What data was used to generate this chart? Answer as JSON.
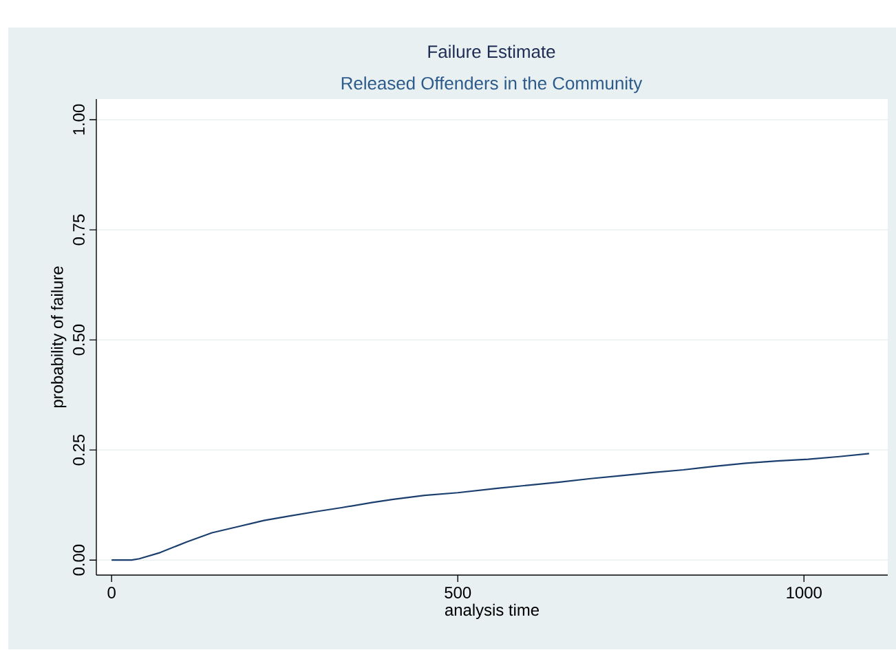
{
  "chart_data": {
    "type": "line",
    "title": "Failure Estimate",
    "subtitle": "Released Offenders in the Community",
    "xlabel": "analysis time",
    "ylabel": "probability of failure",
    "x": [
      0,
      29,
      40,
      70,
      108,
      145,
      183,
      220,
      257,
      295,
      332,
      377,
      407,
      452,
      500,
      557,
      602,
      647,
      692,
      737,
      782,
      826,
      871,
      916,
      961,
      1006,
      1051,
      1094
    ],
    "series": [
      {
        "color": "#1a3e6e",
        "values": [
          0,
          0,
          0.003,
          0.017,
          0.041,
          0.062,
          0.076,
          0.09,
          0.1,
          0.11,
          0.119,
          0.131,
          0.138,
          0.147,
          0.153,
          0.163,
          0.17,
          0.177,
          0.185,
          0.192,
          0.199,
          0.205,
          0.213,
          0.22,
          0.225,
          0.229,
          0.235,
          0.242
        ]
      }
    ],
    "xlim": [
      -22,
      1121
    ],
    "ylim": [
      -0.034,
      1.047
    ],
    "xticks": [
      0,
      500,
      1000
    ],
    "yticks": [
      {
        "value": 0,
        "label": "0.00"
      },
      {
        "value": 0.25,
        "label": "0.25"
      },
      {
        "value": 0.5,
        "label": "0.50"
      },
      {
        "value": 0.75,
        "label": "0.75"
      },
      {
        "value": 1,
        "label": "1.00"
      }
    ],
    "grid": "y"
  }
}
